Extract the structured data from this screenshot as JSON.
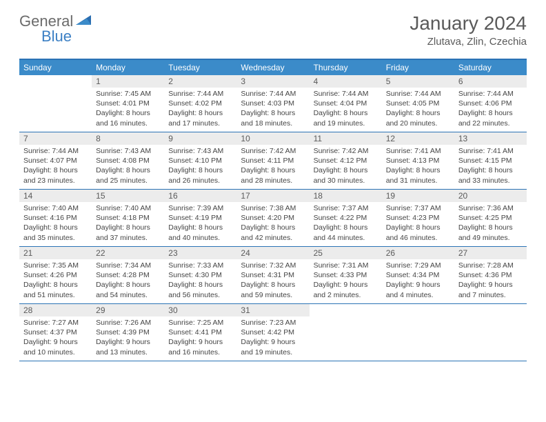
{
  "logo": {
    "text1": "General",
    "text2": "Blue"
  },
  "title": "January 2024",
  "location": "Zlutava, Zlin, Czechia",
  "colors": {
    "header_bg": "#3b8bc9",
    "border": "#2a72b5",
    "daynum_bg": "#ececec",
    "text": "#5a5a5a",
    "body_text": "#444444",
    "logo_gray": "#6b6b6b",
    "logo_blue": "#3b7fc4"
  },
  "weekdays": [
    "Sunday",
    "Monday",
    "Tuesday",
    "Wednesday",
    "Thursday",
    "Friday",
    "Saturday"
  ],
  "weeks": [
    [
      {
        "empty": true
      },
      {
        "num": "1",
        "sr": "Sunrise: 7:45 AM",
        "ss": "Sunset: 4:01 PM",
        "d1": "Daylight: 8 hours",
        "d2": "and 16 minutes."
      },
      {
        "num": "2",
        "sr": "Sunrise: 7:44 AM",
        "ss": "Sunset: 4:02 PM",
        "d1": "Daylight: 8 hours",
        "d2": "and 17 minutes."
      },
      {
        "num": "3",
        "sr": "Sunrise: 7:44 AM",
        "ss": "Sunset: 4:03 PM",
        "d1": "Daylight: 8 hours",
        "d2": "and 18 minutes."
      },
      {
        "num": "4",
        "sr": "Sunrise: 7:44 AM",
        "ss": "Sunset: 4:04 PM",
        "d1": "Daylight: 8 hours",
        "d2": "and 19 minutes."
      },
      {
        "num": "5",
        "sr": "Sunrise: 7:44 AM",
        "ss": "Sunset: 4:05 PM",
        "d1": "Daylight: 8 hours",
        "d2": "and 20 minutes."
      },
      {
        "num": "6",
        "sr": "Sunrise: 7:44 AM",
        "ss": "Sunset: 4:06 PM",
        "d1": "Daylight: 8 hours",
        "d2": "and 22 minutes."
      }
    ],
    [
      {
        "num": "7",
        "sr": "Sunrise: 7:44 AM",
        "ss": "Sunset: 4:07 PM",
        "d1": "Daylight: 8 hours",
        "d2": "and 23 minutes."
      },
      {
        "num": "8",
        "sr": "Sunrise: 7:43 AM",
        "ss": "Sunset: 4:08 PM",
        "d1": "Daylight: 8 hours",
        "d2": "and 25 minutes."
      },
      {
        "num": "9",
        "sr": "Sunrise: 7:43 AM",
        "ss": "Sunset: 4:10 PM",
        "d1": "Daylight: 8 hours",
        "d2": "and 26 minutes."
      },
      {
        "num": "10",
        "sr": "Sunrise: 7:42 AM",
        "ss": "Sunset: 4:11 PM",
        "d1": "Daylight: 8 hours",
        "d2": "and 28 minutes."
      },
      {
        "num": "11",
        "sr": "Sunrise: 7:42 AM",
        "ss": "Sunset: 4:12 PM",
        "d1": "Daylight: 8 hours",
        "d2": "and 30 minutes."
      },
      {
        "num": "12",
        "sr": "Sunrise: 7:41 AM",
        "ss": "Sunset: 4:13 PM",
        "d1": "Daylight: 8 hours",
        "d2": "and 31 minutes."
      },
      {
        "num": "13",
        "sr": "Sunrise: 7:41 AM",
        "ss": "Sunset: 4:15 PM",
        "d1": "Daylight: 8 hours",
        "d2": "and 33 minutes."
      }
    ],
    [
      {
        "num": "14",
        "sr": "Sunrise: 7:40 AM",
        "ss": "Sunset: 4:16 PM",
        "d1": "Daylight: 8 hours",
        "d2": "and 35 minutes."
      },
      {
        "num": "15",
        "sr": "Sunrise: 7:40 AM",
        "ss": "Sunset: 4:18 PM",
        "d1": "Daylight: 8 hours",
        "d2": "and 37 minutes."
      },
      {
        "num": "16",
        "sr": "Sunrise: 7:39 AM",
        "ss": "Sunset: 4:19 PM",
        "d1": "Daylight: 8 hours",
        "d2": "and 40 minutes."
      },
      {
        "num": "17",
        "sr": "Sunrise: 7:38 AM",
        "ss": "Sunset: 4:20 PM",
        "d1": "Daylight: 8 hours",
        "d2": "and 42 minutes."
      },
      {
        "num": "18",
        "sr": "Sunrise: 7:37 AM",
        "ss": "Sunset: 4:22 PM",
        "d1": "Daylight: 8 hours",
        "d2": "and 44 minutes."
      },
      {
        "num": "19",
        "sr": "Sunrise: 7:37 AM",
        "ss": "Sunset: 4:23 PM",
        "d1": "Daylight: 8 hours",
        "d2": "and 46 minutes."
      },
      {
        "num": "20",
        "sr": "Sunrise: 7:36 AM",
        "ss": "Sunset: 4:25 PM",
        "d1": "Daylight: 8 hours",
        "d2": "and 49 minutes."
      }
    ],
    [
      {
        "num": "21",
        "sr": "Sunrise: 7:35 AM",
        "ss": "Sunset: 4:26 PM",
        "d1": "Daylight: 8 hours",
        "d2": "and 51 minutes."
      },
      {
        "num": "22",
        "sr": "Sunrise: 7:34 AM",
        "ss": "Sunset: 4:28 PM",
        "d1": "Daylight: 8 hours",
        "d2": "and 54 minutes."
      },
      {
        "num": "23",
        "sr": "Sunrise: 7:33 AM",
        "ss": "Sunset: 4:30 PM",
        "d1": "Daylight: 8 hours",
        "d2": "and 56 minutes."
      },
      {
        "num": "24",
        "sr": "Sunrise: 7:32 AM",
        "ss": "Sunset: 4:31 PM",
        "d1": "Daylight: 8 hours",
        "d2": "and 59 minutes."
      },
      {
        "num": "25",
        "sr": "Sunrise: 7:31 AM",
        "ss": "Sunset: 4:33 PM",
        "d1": "Daylight: 9 hours",
        "d2": "and 2 minutes."
      },
      {
        "num": "26",
        "sr": "Sunrise: 7:29 AM",
        "ss": "Sunset: 4:34 PM",
        "d1": "Daylight: 9 hours",
        "d2": "and 4 minutes."
      },
      {
        "num": "27",
        "sr": "Sunrise: 7:28 AM",
        "ss": "Sunset: 4:36 PM",
        "d1": "Daylight: 9 hours",
        "d2": "and 7 minutes."
      }
    ],
    [
      {
        "num": "28",
        "sr": "Sunrise: 7:27 AM",
        "ss": "Sunset: 4:37 PM",
        "d1": "Daylight: 9 hours",
        "d2": "and 10 minutes."
      },
      {
        "num": "29",
        "sr": "Sunrise: 7:26 AM",
        "ss": "Sunset: 4:39 PM",
        "d1": "Daylight: 9 hours",
        "d2": "and 13 minutes."
      },
      {
        "num": "30",
        "sr": "Sunrise: 7:25 AM",
        "ss": "Sunset: 4:41 PM",
        "d1": "Daylight: 9 hours",
        "d2": "and 16 minutes."
      },
      {
        "num": "31",
        "sr": "Sunrise: 7:23 AM",
        "ss": "Sunset: 4:42 PM",
        "d1": "Daylight: 9 hours",
        "d2": "and 19 minutes."
      },
      {
        "empty": true
      },
      {
        "empty": true
      },
      {
        "empty": true
      }
    ]
  ]
}
